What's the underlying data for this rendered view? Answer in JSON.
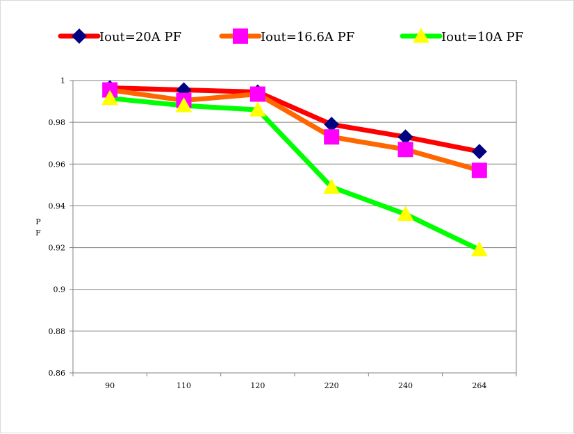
{
  "chart_data": {
    "type": "line",
    "title": "",
    "xlabel": "",
    "ylabel": "PF",
    "categories": [
      "90",
      "110",
      "120",
      "220",
      "240",
      "264"
    ],
    "ylim": [
      0.86,
      1
    ],
    "yticks": [
      0.86,
      0.88,
      0.9,
      0.92,
      0.94,
      0.96,
      0.98,
      1
    ],
    "ytick_labels": [
      "0.86",
      "0.88",
      "0.9",
      "0.92",
      "0.94",
      "0.96",
      "0.98",
      "1"
    ],
    "grid": "horizontal",
    "legend_position": "top",
    "series": [
      {
        "name": "Iout=20A PF",
        "values": [
          0.9965,
          0.9955,
          0.9945,
          0.979,
          0.973,
          0.966
        ],
        "line_color": "#ff0000",
        "marker": "diamond",
        "marker_color": "#000080"
      },
      {
        "name": "Iout=16.6A PF",
        "values": [
          0.9955,
          0.9905,
          0.9935,
          0.973,
          0.967,
          0.957
        ],
        "line_color": "#ff6600",
        "marker": "square",
        "marker_color": "#ff00ff"
      },
      {
        "name": "Iout=10A PF",
        "values": [
          0.9915,
          0.988,
          0.986,
          0.949,
          0.936,
          0.919
        ],
        "line_color": "#00ff00",
        "marker": "triangle",
        "marker_color": "#ffff00"
      }
    ]
  }
}
